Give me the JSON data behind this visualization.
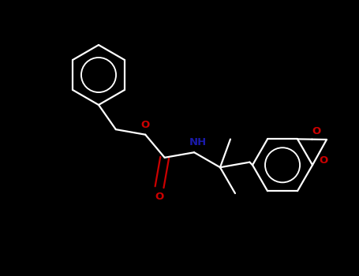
{
  "bg_color": "#000000",
  "bond_color": "#ffffff",
  "N_color": "#1a1aaa",
  "O_color": "#cc0000",
  "lw": 1.6,
  "dbo": 0.018,
  "fig_width": 4.55,
  "fig_height": 3.5,
  "dpi": 100,
  "xlim": [
    0,
    4.55
  ],
  "ylim": [
    0,
    3.5
  ]
}
